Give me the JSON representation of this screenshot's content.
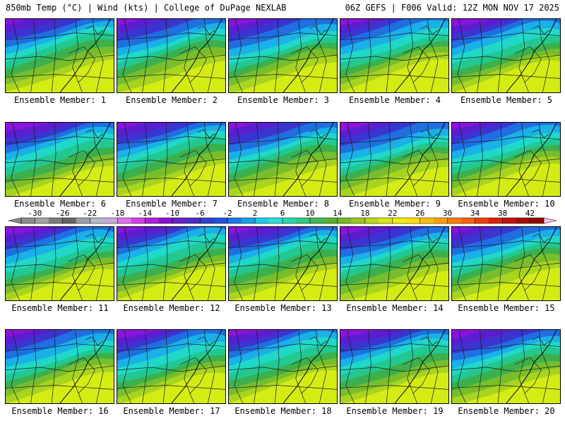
{
  "header": {
    "left": "850mb Temp (°C) | Wind (kts) | College of DuPage NEXLAB",
    "right": "06Z GEFS | F006 Valid: 12Z MON NOV 17 2025"
  },
  "member_label_prefix": "Ensemble Member:",
  "members": [
    1,
    2,
    3,
    4,
    5,
    6,
    7,
    8,
    9,
    10,
    11,
    12,
    13,
    14,
    15,
    16,
    17,
    18,
    19,
    20
  ],
  "colorbar": {
    "ticks": [
      "-30",
      "-26",
      "-22",
      "-18",
      "-14",
      "-10",
      "-6",
      "-2",
      "2",
      "6",
      "10",
      "14",
      "18",
      "22",
      "26",
      "30",
      "34",
      "38",
      "42"
    ],
    "min": -32,
    "max": 44,
    "step": 2,
    "colors": [
      "#8c8c8c",
      "#a3a3a3",
      "#7c7c7c",
      "#666666",
      "#9aa0a8",
      "#b4b8c8",
      "#c8a8e0",
      "#e070f0",
      "#d040e8",
      "#b020e0",
      "#8a10d8",
      "#6a20d0",
      "#4a2cc8",
      "#3040d0",
      "#2050e0",
      "#1c78e8",
      "#18a0ec",
      "#20c8e8",
      "#28e0d8",
      "#28d8b0",
      "#30c880",
      "#40b850",
      "#58b030",
      "#78b828",
      "#98c820",
      "#b8d818",
      "#d8e810",
      "#f0f000",
      "#ffe000",
      "#ffc000",
      "#ffa000",
      "#ff8000",
      "#ff6000",
      "#f04000",
      "#e02000",
      "#c81010",
      "#a80808",
      "#900000",
      "#b01040",
      "#d02080",
      "#e040b0",
      "#f060d0",
      "#f890e0",
      "#fcc0f0"
    ]
  }
}
